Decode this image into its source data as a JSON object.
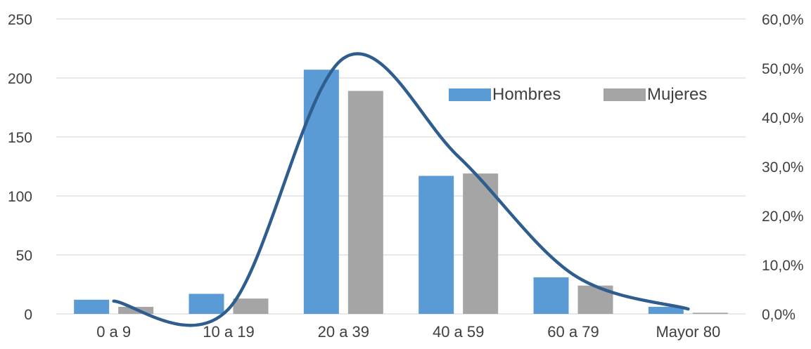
{
  "chart_data": {
    "type": "bar",
    "categories": [
      "0 a 9",
      "10 a 19",
      "20 a 39",
      "40 a 59",
      "60 a 79",
      "Mayor 80"
    ],
    "series": [
      {
        "name": "Hombres",
        "values": [
          12,
          17,
          207,
          117,
          31,
          6
        ],
        "color": "#5b9bd5"
      },
      {
        "name": "Mujeres",
        "values": [
          6,
          13,
          189,
          119,
          24,
          1
        ],
        "color": "#a5a5a5"
      }
    ],
    "line_series": {
      "values": [
        2.6,
        1.0,
        52.0,
        32.0,
        8.0,
        1.0
      ],
      "axis": "secondary",
      "color": "#2e5d8e",
      "smooth": true
    },
    "y_ticks": [
      "0",
      "50",
      "100",
      "150",
      "200",
      "250"
    ],
    "y_tick_values": [
      0,
      50,
      100,
      150,
      200,
      250
    ],
    "ylim": [
      0,
      250
    ],
    "y2_ticks": [
      "0,0%",
      "10,0%",
      "20,0%",
      "30,0%",
      "40,0%",
      "50,0%",
      "60,0%"
    ],
    "y2_tick_values": [
      0,
      10,
      20,
      30,
      40,
      50,
      60
    ],
    "y2lim": [
      0,
      60
    ],
    "grid": true,
    "legend_position": "top-right",
    "title": "",
    "xlabel": "",
    "ylabel": ""
  }
}
